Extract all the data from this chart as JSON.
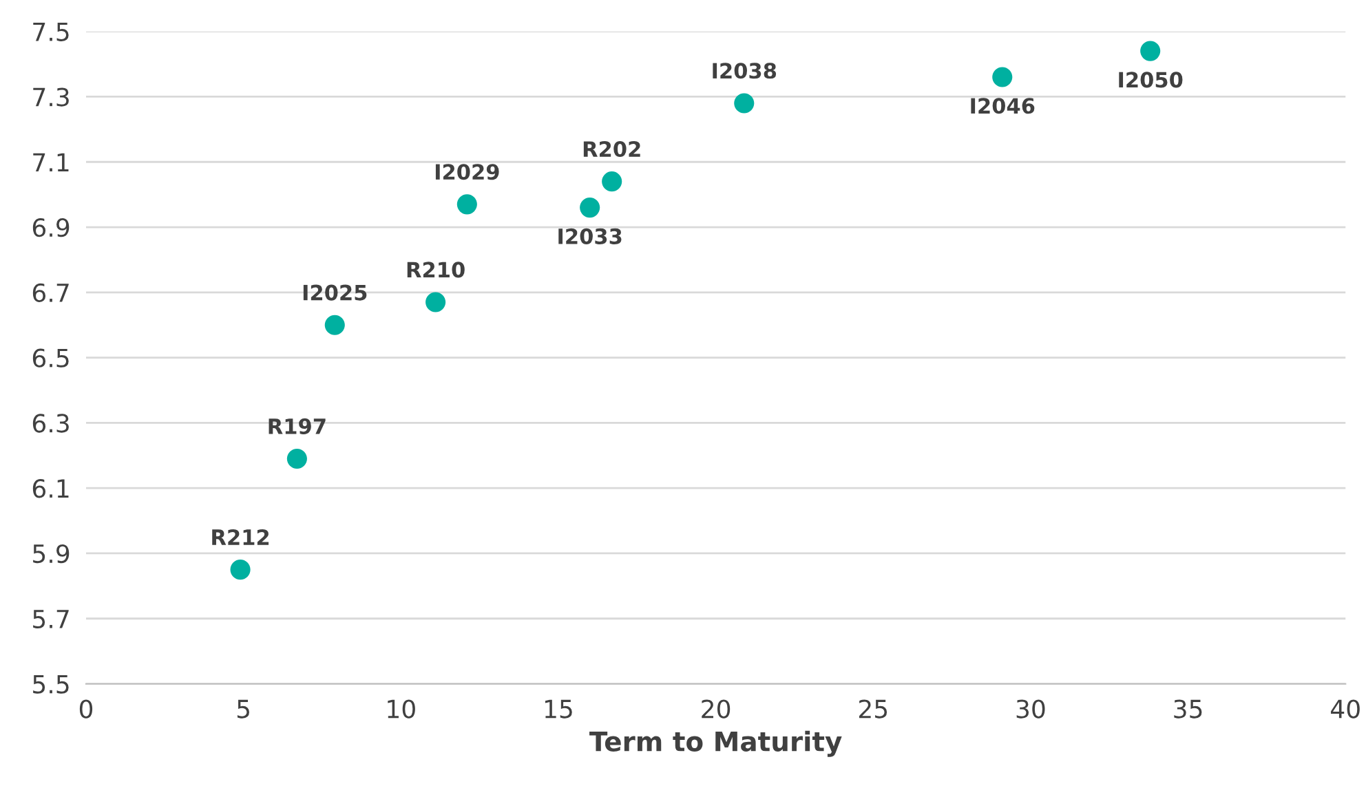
{
  "chart_data": {
    "type": "scatter",
    "xlabel": "Term to Maturity",
    "x": [
      4.9,
      6.7,
      7.9,
      11.1,
      12.1,
      16.0,
      16.7,
      20.9,
      29.1,
      33.8
    ],
    "values": [
      5.85,
      6.19,
      6.6,
      6.67,
      6.97,
      6.96,
      7.04,
      7.28,
      7.36,
      7.44
    ],
    "color": "#00b0a0",
    "marker": "circle",
    "annotations": [
      {
        "text": "R212",
        "x": 4.9,
        "y": 5.85
      },
      {
        "text": "R197",
        "x": 6.7,
        "y": 6.19
      },
      {
        "text": "I2025",
        "x": 7.9,
        "y": 6.6
      },
      {
        "text": "R210",
        "x": 11.1,
        "y": 6.67
      },
      {
        "text": "I2029",
        "x": 12.1,
        "y": 6.97
      },
      {
        "text": "I2033",
        "x": 16.0,
        "y": 6.96
      },
      {
        "text": "R202",
        "x": 16.7,
        "y": 7.04
      },
      {
        "text": "I2038",
        "x": 20.9,
        "y": 7.28
      },
      {
        "text": "I2046",
        "x": 29.1,
        "y": 7.36
      },
      {
        "text": "I2050",
        "x": 33.8,
        "y": 7.44
      }
    ],
    "xlim": [
      0,
      40
    ],
    "xticks": [
      0,
      5,
      10,
      15,
      20,
      25,
      30,
      35,
      40
    ],
    "ylim": [
      5.5,
      7.5
    ],
    "yticks": [
      5.5,
      5.7,
      5.9,
      6.1,
      6.3,
      6.5,
      6.7,
      6.9,
      7.1,
      7.3,
      7.5
    ],
    "grid": "y"
  }
}
